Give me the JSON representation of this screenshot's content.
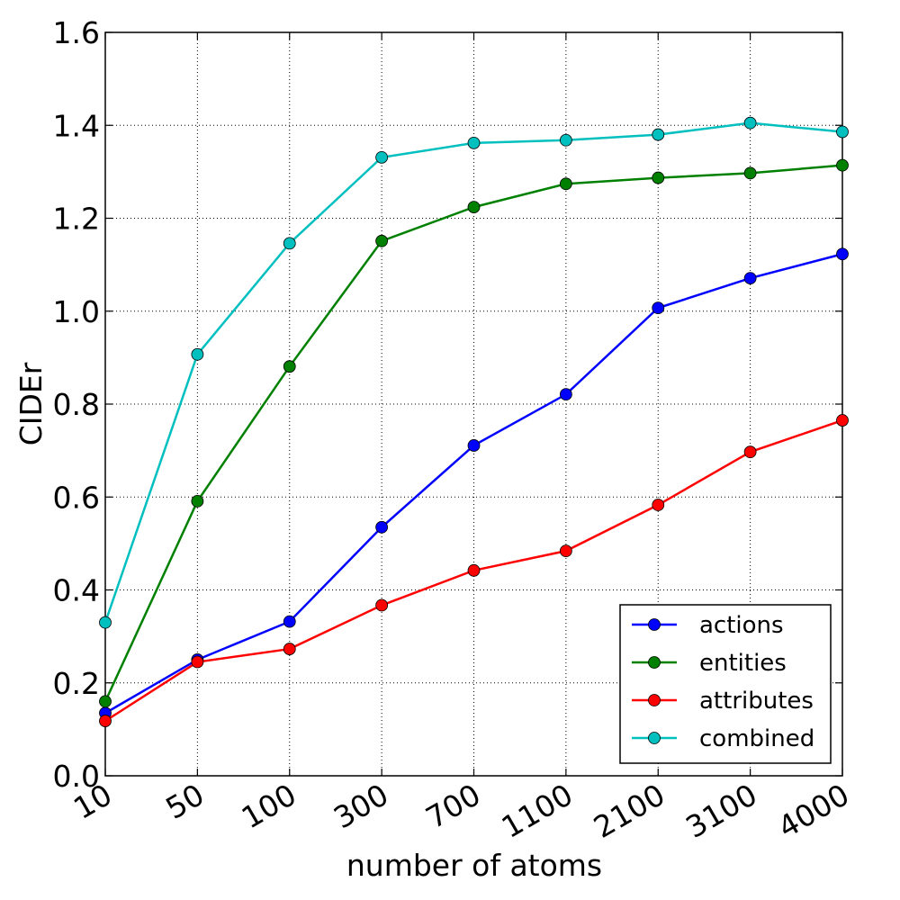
{
  "chart_data": {
    "type": "line",
    "title": "",
    "xlabel": "number of atoms",
    "ylabel": "CIDEr",
    "categories": [
      "10",
      "50",
      "100",
      "300",
      "700",
      "1100",
      "2100",
      "3100",
      "4000"
    ],
    "ylim": [
      0.0,
      1.6
    ],
    "yticks": [
      "0.0",
      "0.2",
      "0.4",
      "0.6",
      "0.8",
      "1.0",
      "1.2",
      "1.4",
      "1.6"
    ],
    "grid": true,
    "legend_position": "bottom-right",
    "series": [
      {
        "name": "actions",
        "color": "#0000ff",
        "values": [
          0.135,
          0.25,
          0.332,
          0.535,
          0.711,
          0.821,
          1.007,
          1.071,
          1.123
        ]
      },
      {
        "name": "entities",
        "color": "#008000",
        "values": [
          0.16,
          0.591,
          0.881,
          1.151,
          1.224,
          1.274,
          1.287,
          1.297,
          1.314
        ]
      },
      {
        "name": "attributes",
        "color": "#ff0000",
        "values": [
          0.118,
          0.245,
          0.273,
          0.367,
          0.442,
          0.484,
          0.583,
          0.697,
          0.765
        ]
      },
      {
        "name": "combined",
        "color": "#00bfbf",
        "values": [
          0.33,
          0.907,
          1.146,
          1.331,
          1.362,
          1.368,
          1.38,
          1.405,
          1.386
        ]
      }
    ]
  }
}
